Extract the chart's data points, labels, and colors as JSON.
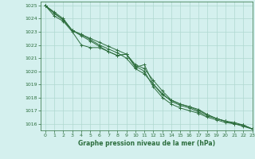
{
  "title": "Graphe pression niveau de la mer (hPa)",
  "background_color": "#d4f0ee",
  "grid_color": "#b0d8d0",
  "line_color": "#2d6e3e",
  "ylim": [
    1015.5,
    1025.3
  ],
  "xlim": [
    -0.5,
    23
  ],
  "yticks": [
    1016,
    1017,
    1018,
    1019,
    1020,
    1021,
    1022,
    1023,
    1024,
    1025
  ],
  "xticks": [
    0,
    1,
    2,
    3,
    4,
    5,
    6,
    7,
    8,
    9,
    10,
    11,
    12,
    13,
    14,
    15,
    16,
    17,
    18,
    19,
    20,
    21,
    22,
    23
  ],
  "series": [
    [
      1025.0,
      1024.5,
      1024.0,
      1023.1,
      1022.8,
      1022.5,
      1022.2,
      1021.9,
      1021.6,
      1021.3,
      1020.5,
      1020.2,
      1019.3,
      1018.5,
      1017.8,
      1017.5,
      1017.3,
      1017.1,
      1016.7,
      1016.4,
      1016.2,
      1016.1,
      1015.9,
      1015.6
    ],
    [
      1025.0,
      1024.4,
      1023.9,
      1023.1,
      1022.8,
      1022.4,
      1022.0,
      1021.7,
      1021.4,
      1021.0,
      1020.2,
      1019.8,
      1019.0,
      1018.3,
      1017.7,
      1017.4,
      1017.2,
      1016.9,
      1016.6,
      1016.4,
      1016.2,
      1016.0,
      1015.9,
      1015.6
    ],
    [
      1025.0,
      1024.4,
      1023.9,
      1023.1,
      1022.7,
      1022.3,
      1021.9,
      1021.5,
      1021.2,
      1021.3,
      1020.4,
      1020.0,
      1018.8,
      1018.0,
      1017.5,
      1017.2,
      1017.0,
      1016.8,
      1016.5,
      1016.3,
      1016.1,
      1016.0,
      1015.8,
      1015.6
    ],
    [
      1025.0,
      1024.2,
      1023.8,
      1023.0,
      1022.0,
      1021.8,
      1021.8,
      1021.5,
      1021.2,
      1021.3,
      1020.3,
      1020.5,
      1019.0,
      1018.2,
      1017.8,
      1017.5,
      1017.3,
      1017.0,
      1016.7,
      1016.4,
      1016.2,
      1016.0,
      1015.9,
      1015.6
    ]
  ]
}
